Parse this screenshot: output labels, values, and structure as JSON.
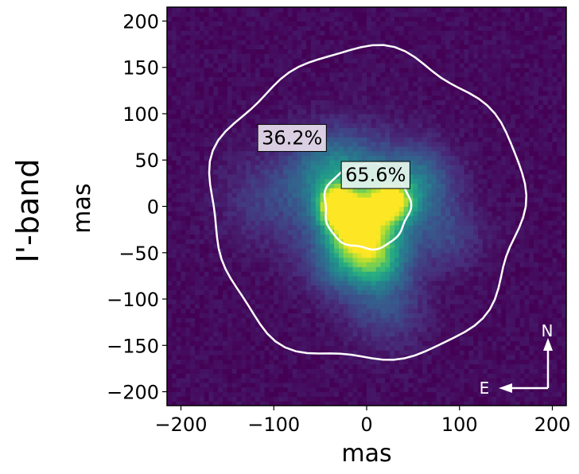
{
  "chart_data": {
    "type": "heatmap",
    "row_label": "I'-band",
    "xlabel": "mas",
    "ylabel": "mas",
    "xlim": [
      -215,
      215
    ],
    "ylim": [
      -215,
      215
    ],
    "xticks": [
      -200,
      -100,
      0,
      100,
      200
    ],
    "yticks": [
      -200,
      -150,
      -100,
      -50,
      0,
      50,
      100,
      150,
      200
    ],
    "xtick_labels": [
      "−200",
      "−100",
      "0",
      "100",
      "200"
    ],
    "ytick_labels": [
      "−200",
      "−150",
      "−100",
      "−50",
      "0",
      "50",
      "100",
      "150",
      "200"
    ],
    "colormap": "viridis",
    "contours": [
      {
        "name": "outer",
        "radius_mas": 168,
        "color": "#ffffff"
      },
      {
        "name": "inner",
        "radius_mas": 46,
        "color": "#ffffff"
      }
    ],
    "annotations": [
      {
        "text": "36.2%",
        "x": -113,
        "y": 67,
        "bg": "#e3d7e8"
      },
      {
        "text": "65.6%",
        "x": -23,
        "y": 27,
        "bg": "#e2f2ea"
      }
    ],
    "compass": {
      "north": "N",
      "east": "E"
    },
    "emission_blobs": [
      {
        "x": -30,
        "y": 0,
        "sigma": 14,
        "amp": 1.0
      },
      {
        "x": 25,
        "y": 5,
        "sigma": 16,
        "amp": 0.85
      },
      {
        "x": -10,
        "y": -25,
        "sigma": 18,
        "amp": 0.75
      },
      {
        "x": 10,
        "y": -55,
        "sigma": 22,
        "amp": 0.5
      },
      {
        "x": 0,
        "y": 0,
        "sigma": 45,
        "amp": 0.45
      },
      {
        "x": -40,
        "y": 40,
        "sigma": 30,
        "amp": 0.3
      },
      {
        "x": 60,
        "y": 30,
        "sigma": 25,
        "amp": 0.25
      },
      {
        "x": -110,
        "y": 10,
        "sigma": 35,
        "amp": 0.15
      },
      {
        "x": 20,
        "y": -110,
        "sigma": 30,
        "amp": 0.2
      },
      {
        "x": 90,
        "y": -30,
        "sigma": 25,
        "amp": 0.15
      },
      {
        "x": -30,
        "y": -60,
        "sigma": 25,
        "amp": 0.25
      }
    ]
  }
}
